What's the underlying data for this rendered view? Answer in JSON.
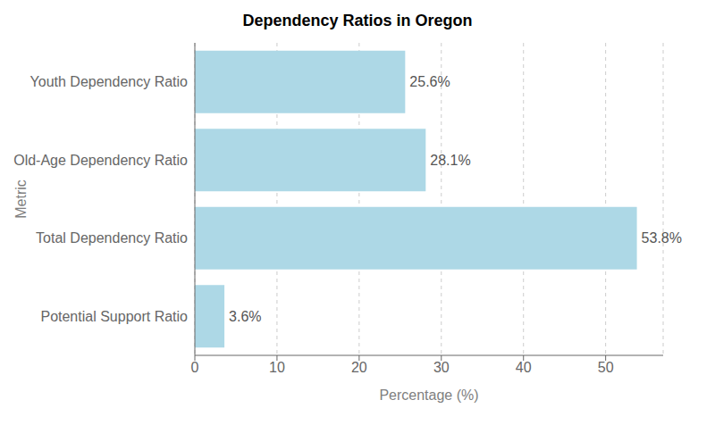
{
  "chart_data": {
    "type": "bar",
    "orientation": "horizontal",
    "title": "Dependency Ratios in Oregon",
    "xlabel": "Percentage (%)",
    "ylabel": "Metric",
    "categories": [
      "Youth Dependency Ratio",
      "Old-Age Dependency Ratio",
      "Total Dependency Ratio",
      "Potential Support Ratio"
    ],
    "values": [
      25.6,
      28.1,
      53.8,
      3.6
    ],
    "value_labels": [
      "25.6%",
      "28.1%",
      "53.8%",
      "3.6%"
    ],
    "data_labels": true,
    "color": "#add8e6",
    "xlim": [
      0,
      57
    ],
    "xticks": [
      0,
      10,
      20,
      30,
      40,
      50
    ],
    "grid": true
  }
}
